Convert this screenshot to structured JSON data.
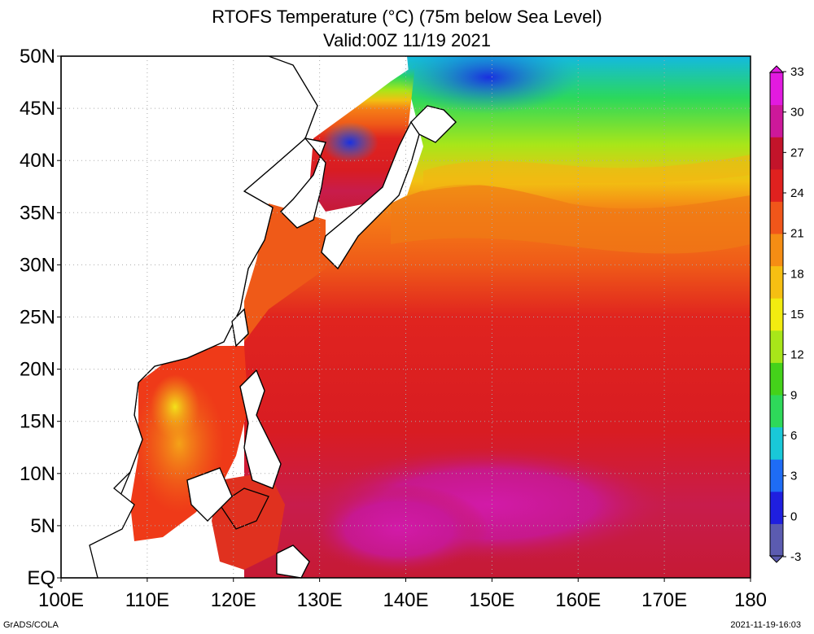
{
  "title": {
    "line1": "RTOFS Temperature (°C) (75m below Sea Level)",
    "line2": "Valid:00Z 11/19 2021"
  },
  "axes": {
    "lat_labels": [
      "50N",
      "45N",
      "40N",
      "35N",
      "30N",
      "25N",
      "20N",
      "15N",
      "10N",
      "5N",
      "EQ"
    ],
    "lon_labels": [
      "100E",
      "110E",
      "120E",
      "130E",
      "140E",
      "150E",
      "160E",
      "170E",
      "180"
    ]
  },
  "colorbar": {
    "labels": [
      "33",
      "30",
      "27",
      "24",
      "21",
      "18",
      "15",
      "12",
      "9",
      "6",
      "3",
      "0",
      "-3"
    ],
    "colors": [
      "#5b5bb0",
      "#1f1fdf",
      "#1e6cf5",
      "#19c8d8",
      "#2ed95a",
      "#44d21a",
      "#a8e619",
      "#f2ec10",
      "#f6bf12",
      "#f58d14",
      "#f0561a",
      "#e0211f",
      "#c3142a",
      "#cd189a",
      "#e21ae0"
    ]
  },
  "footer": {
    "left": "GrADS/COLA",
    "right": "2021-11-19-16:03"
  }
}
